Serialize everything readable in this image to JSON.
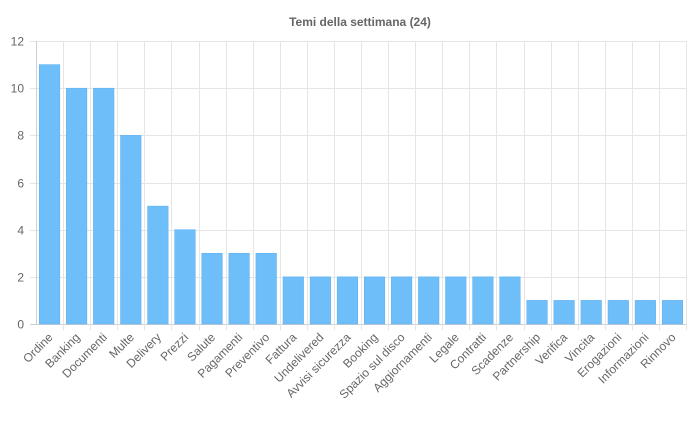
{
  "chart_data": {
    "type": "bar",
    "title": "Temi della settimana (24)",
    "xlabel": "",
    "ylabel": "",
    "categories": [
      "Ordine",
      "Banking",
      "Documenti",
      "Multe",
      "Delivery",
      "Prezzi",
      "Salute",
      "Pagamenti",
      "Preventivo",
      "Fattura",
      "Undelivered",
      "Avvisi sicurezza",
      "Booking",
      "Spazio sul disco",
      "Aggiornamenti",
      "Legale",
      "Contratti",
      "Scadenze",
      "Partnership",
      "Verifica",
      "Vincita",
      "Erogazioni",
      "Informazioni",
      "Rinnovo"
    ],
    "values": [
      11,
      10,
      10,
      8,
      5,
      4,
      3,
      3,
      3,
      2,
      2,
      2,
      2,
      2,
      2,
      2,
      2,
      2,
      1,
      1,
      1,
      1,
      1,
      1
    ],
    "ylim": [
      0,
      12
    ],
    "yticks": [
      0,
      2,
      4,
      6,
      8,
      10,
      12
    ],
    "grid": true,
    "legend": "none",
    "bar_color": "#6ebef9",
    "bar_border": "#5aaef0"
  }
}
